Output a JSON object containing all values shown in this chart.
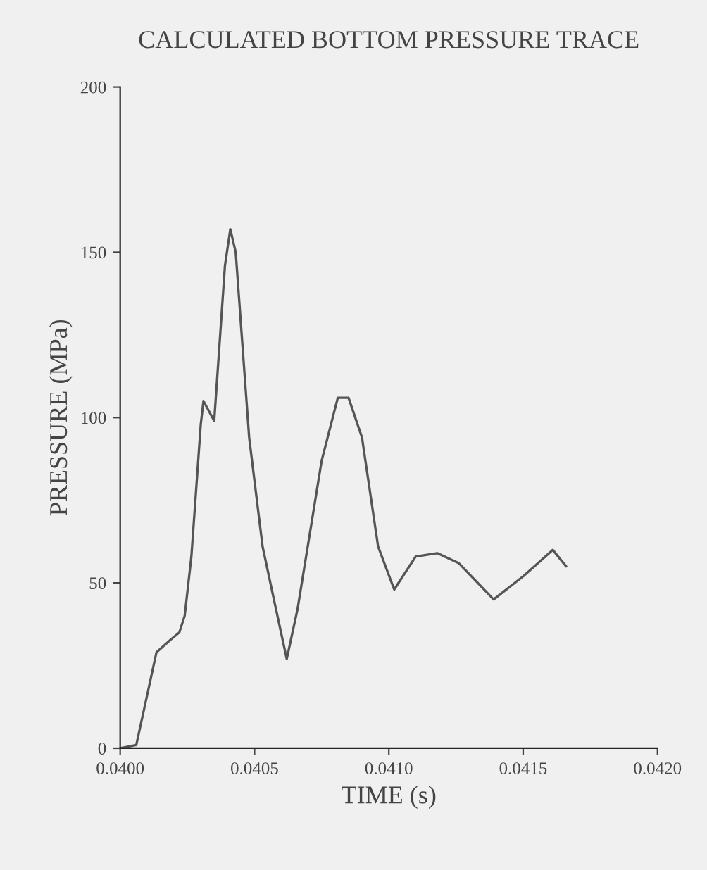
{
  "chart_data": {
    "type": "line",
    "title": "CALCULATED BOTTOM PRESSURE TRACE",
    "xlabel": "TIME (s)",
    "ylabel": "PRESSURE (MPa)",
    "series": [
      {
        "color": "#555555",
        "x": [
          0.04,
          0.04006,
          0.040135,
          0.04019,
          0.04022,
          0.04024,
          0.040265,
          0.0403,
          0.04031,
          0.04035,
          0.04039,
          0.04041,
          0.04043,
          0.04048,
          0.04053,
          0.04058,
          0.04062,
          0.04066,
          0.04071,
          0.04075,
          0.04081,
          0.04085,
          0.0409,
          0.04096,
          0.04102,
          0.0411,
          0.04118,
          0.04126,
          0.04139,
          0.0415,
          0.04161,
          0.04166
        ],
        "values": [
          0,
          1,
          29,
          33,
          35,
          40,
          58,
          98,
          105,
          99,
          146,
          157,
          150,
          94,
          61,
          42,
          27,
          42,
          67,
          87,
          106,
          106,
          94,
          61,
          48,
          58,
          59,
          56,
          45,
          52,
          60,
          55
        ]
      }
    ],
    "xlim": [
      0.04,
      0.042
    ],
    "xticks": [
      {
        "value": 0.04,
        "label": "0.0400"
      },
      {
        "value": 0.0405,
        "label": "0.0405"
      },
      {
        "value": 0.041,
        "label": "0.0410"
      },
      {
        "value": 0.0415,
        "label": "0.0415"
      },
      {
        "value": 0.042,
        "label": "0.0420"
      }
    ],
    "ylim": [
      0,
      200
    ],
    "yticks": [
      0,
      50,
      100,
      150,
      200
    ],
    "grid": false,
    "line_style": "solid",
    "marker": "none"
  }
}
